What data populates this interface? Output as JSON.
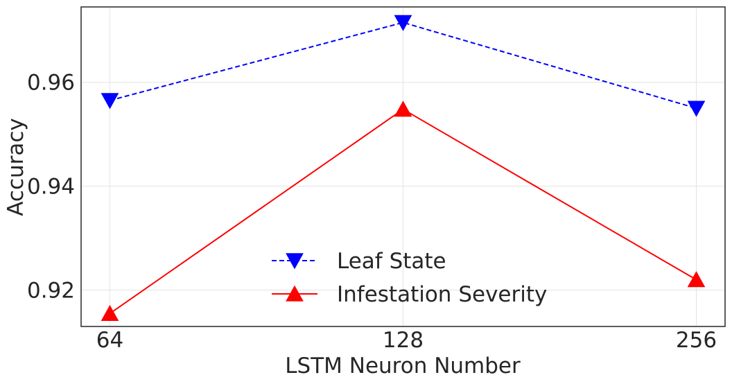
{
  "chart_data": {
    "type": "line",
    "xlabel": "LSTM Neuron Number",
    "ylabel": "Accuracy",
    "categories": [
      "64",
      "128",
      "256"
    ],
    "ylim": [
      0.913,
      0.9745
    ],
    "yticks": [
      "0.92",
      "0.94",
      "0.96"
    ],
    "ytick_values": [
      0.92,
      0.94,
      0.96
    ],
    "grid": true,
    "legend_position": "lower-center",
    "series": [
      {
        "name": "Leaf State",
        "values": [
          0.9565,
          0.9715,
          0.955
        ],
        "color": "#0000ff",
        "line_style": "dashed",
        "marker": "triangle-down"
      },
      {
        "name": "Infestation Severity",
        "values": [
          0.9155,
          0.9548,
          0.922
        ],
        "color": "#ff0000",
        "line_style": "solid",
        "marker": "triangle-up"
      }
    ]
  }
}
